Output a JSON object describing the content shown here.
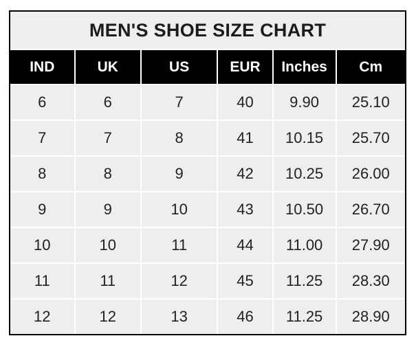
{
  "chart_data": {
    "type": "table",
    "title": "MEN'S SHOE SIZE CHART",
    "columns": [
      "IND",
      "UK",
      "US",
      "EUR",
      "Inches",
      "Cm"
    ],
    "rows": [
      [
        "6",
        "6",
        "7",
        "40",
        "9.90",
        "25.10"
      ],
      [
        "7",
        "7",
        "8",
        "41",
        "10.15",
        "25.70"
      ],
      [
        "8",
        "8",
        "9",
        "42",
        "10.25",
        "26.00"
      ],
      [
        "9",
        "9",
        "10",
        "43",
        "10.50",
        "26.70"
      ],
      [
        "10",
        "10",
        "11",
        "44",
        "11.00",
        "27.90"
      ],
      [
        "11",
        "11",
        "12",
        "45",
        "11.25",
        "28.30"
      ],
      [
        "12",
        "12",
        "13",
        "46",
        "11.25",
        "28.90"
      ]
    ],
    "layout": {
      "legend": "none",
      "grid": "white-separators",
      "header_style": "black-on-white-text",
      "body_style": "light-gray-cells"
    },
    "colors": {
      "outer_border": "#000000",
      "title_background": "#efeeef",
      "title_text": "#1c1c1e",
      "header_background": "#010101",
      "header_text": "#ffffff",
      "cell_background": "#efeeef",
      "cell_text": "#212124",
      "separator": "#ffffff",
      "page_background": "#ffffff"
    }
  }
}
